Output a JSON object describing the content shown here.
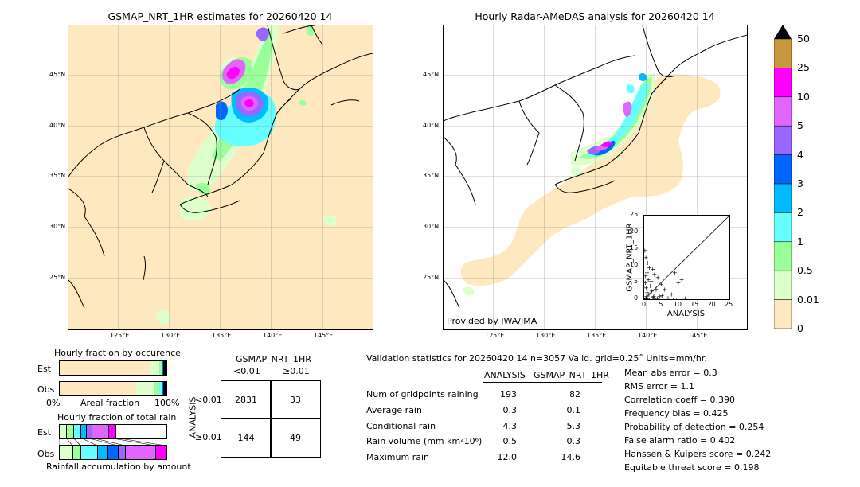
{
  "left_map": {
    "title": "GSMAP_NRT_1HR estimates for 20260420 14",
    "lat_ticks": [
      "45°N",
      "40°N",
      "35°N",
      "30°N",
      "25°N"
    ],
    "lon_ticks": [
      "125°E",
      "130°E",
      "135°E",
      "140°E",
      "145°E"
    ]
  },
  "right_map": {
    "title": "Hourly Radar-AMeDAS analysis for 20260420 14",
    "lat_ticks": [
      "45°N",
      "40°N",
      "35°N",
      "30°N",
      "25°N"
    ],
    "lon_ticks": [
      "125°E",
      "130°E",
      "135°E",
      "140°E",
      "145°E"
    ],
    "credit": "Provided by JWA/JMA"
  },
  "colorbar": {
    "labels": [
      "50",
      "25",
      "10",
      "5",
      "4",
      "3",
      "2",
      "1",
      "0.5",
      "0.01",
      "0"
    ],
    "colors": [
      "#c8963c",
      "#ff00ff",
      "#e066ff",
      "#9966ff",
      "#0066ff",
      "#00bbff",
      "#66ffff",
      "#99ff99",
      "#ddffcc",
      "#fde8c0"
    ]
  },
  "scatter": {
    "ylabel": "GSMAP_NRT_1HR",
    "xlabel": "ANALYSIS",
    "ticks": [
      "0",
      "5",
      "10",
      "15",
      "20",
      "25"
    ]
  },
  "occurrence": {
    "title": "Hourly fraction by occurence",
    "row_est": "Est",
    "row_obs": "Obs",
    "axis_left": "0%",
    "axis_mid": "Areal fraction",
    "axis_right": "100%"
  },
  "total_rain": {
    "title": "Hourly fraction of total rain",
    "row_est": "Est",
    "row_obs": "Obs",
    "axis_caption": "Rainfall accumulation by amount"
  },
  "contingency": {
    "title": "GSMAP_NRT_1HR",
    "col_lt": "<0.01",
    "col_ge": "≥0.01",
    "row_axis": "ANALYSIS",
    "row_lt": "<0.01",
    "row_ge": "≥0.01",
    "a": "2831",
    "b": "33",
    "c": "144",
    "d": "49"
  },
  "validation": {
    "header": "Validation statistics for 20260420 14  n=3057 Valid. grid=0.25˚ Units=mm/hr.",
    "col_analysis": "ANALYSIS",
    "col_gsmap": "GSMAP_NRT_1HR",
    "rows": [
      {
        "label": "Num of gridpoints raining",
        "analysis": "193",
        "gsmap": "82"
      },
      {
        "label": "Average rain",
        "analysis": "0.3",
        "gsmap": "0.1"
      },
      {
        "label": "Conditional rain",
        "analysis": "4.3",
        "gsmap": "5.3"
      },
      {
        "label": "Rain volume (mm km²10⁶)",
        "analysis": "0.5",
        "gsmap": "0.3"
      },
      {
        "label": "Maximum rain",
        "analysis": "12.0",
        "gsmap": "14.6"
      }
    ],
    "scores": [
      "Mean abs error =    0.3",
      "RMS error =    1.1",
      "Correlation coeff =  0.390",
      "Frequency bias =  0.425",
      "Probability of detection =  0.254",
      "False alarm ratio =  0.402",
      "Hanssen & Kuipers score =  0.242",
      "Equitable threat score =  0.198"
    ]
  },
  "chart_data": {
    "type": "scatter",
    "xlabel": "ANALYSIS",
    "ylabel": "GSMAP_NRT_1HR",
    "xlim": [
      0,
      25
    ],
    "ylim": [
      0,
      25
    ],
    "points": [
      [
        0.2,
        14.6
      ],
      [
        0.5,
        12.5
      ],
      [
        1.0,
        11.0
      ],
      [
        1.5,
        9.5
      ],
      [
        0.8,
        8.0
      ],
      [
        2.5,
        9.0
      ],
      [
        3.0,
        7.5
      ],
      [
        0.4,
        7.0
      ],
      [
        1.2,
        6.0
      ],
      [
        2.0,
        5.5
      ],
      [
        0.3,
        5.0
      ],
      [
        4.0,
        6.5
      ],
      [
        5.0,
        4.5
      ],
      [
        1.8,
        4.0
      ],
      [
        0.6,
        3.5
      ],
      [
        3.5,
        3.0
      ],
      [
        2.2,
        2.5
      ],
      [
        6.0,
        3.0
      ],
      [
        0.9,
        2.0
      ],
      [
        1.4,
        1.5
      ],
      [
        8.0,
        1.5
      ],
      [
        10.0,
        5.0
      ],
      [
        11.0,
        6.0
      ],
      [
        9.0,
        8.0
      ],
      [
        2.8,
        1.0
      ],
      [
        4.5,
        0.8
      ],
      [
        7.0,
        0.5
      ],
      [
        12.0,
        0.3
      ],
      [
        0.5,
        0.2
      ],
      [
        1.0,
        0.1
      ],
      [
        3.0,
        0.1
      ],
      [
        5.5,
        0.0
      ],
      [
        2.0,
        0.0
      ],
      [
        6.5,
        0.0
      ],
      [
        8.5,
        0.0
      ],
      [
        9.5,
        0.0
      ],
      [
        4.0,
        0.0
      ],
      [
        1.5,
        0.0
      ],
      [
        0.2,
        0.0
      ],
      [
        7.5,
        0.0
      ],
      [
        3.8,
        0.4
      ],
      [
        2.6,
        0.6
      ],
      [
        5.2,
        1.2
      ],
      [
        0.7,
        1.0
      ]
    ]
  }
}
